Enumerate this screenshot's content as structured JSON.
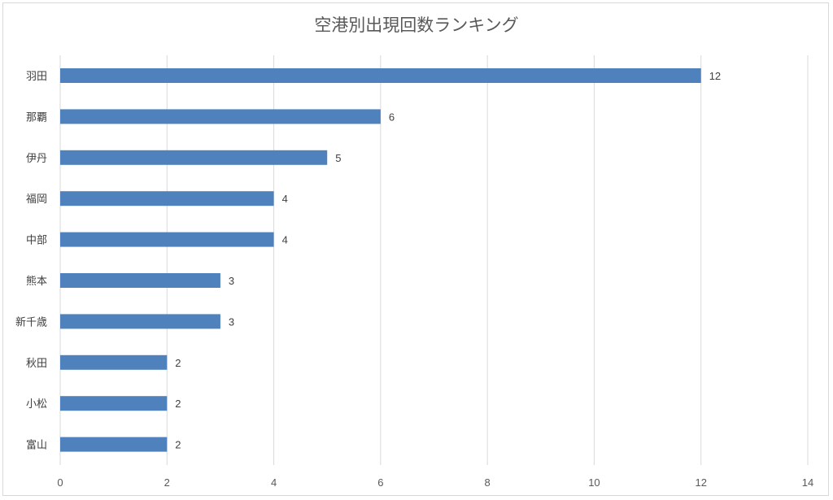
{
  "chart_data": {
    "type": "bar",
    "orientation": "horizontal",
    "title": "空港別出現回数ランキング",
    "categories": [
      "羽田",
      "那覇",
      "伊丹",
      "福岡",
      "中部",
      "熊本",
      "新千歳",
      "秋田",
      "小松",
      "富山"
    ],
    "values": [
      12,
      6,
      5,
      4,
      4,
      3,
      3,
      2,
      2,
      2
    ],
    "xlim": [
      0,
      14
    ],
    "x_ticks": [
      0,
      2,
      4,
      6,
      8,
      10,
      12,
      14
    ],
    "grid": true,
    "legend": "none",
    "data_labels": true,
    "bar_color": "#4f81bd",
    "grid_color": "#d9d9d9"
  }
}
